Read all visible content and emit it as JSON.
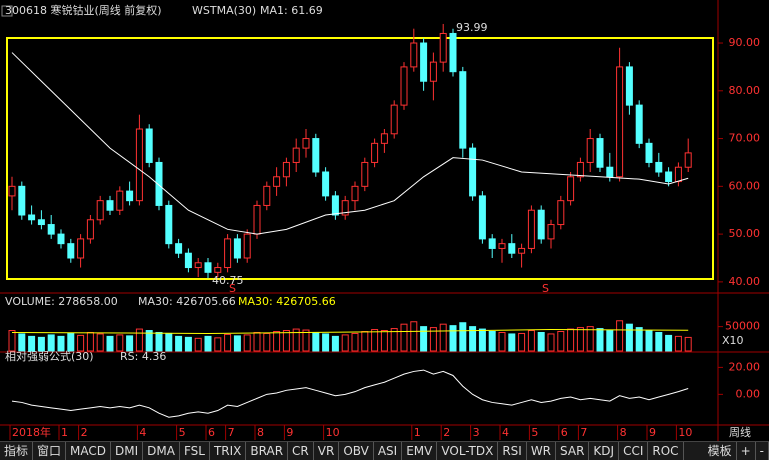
{
  "header": {
    "stock": "300618 寒锐钴业(周线 前复权)",
    "indicator": "WSTMA(30)",
    "ma1": "MA1: 61.69",
    "high_label": "93.99",
    "low_label": "40.75",
    "signals": [
      "S",
      "S"
    ],
    "period": "周线"
  },
  "tabs": [
    "指标",
    "窗口",
    "MACD",
    "DMI",
    "DMA",
    "FSL",
    "TRIX",
    "BRAR",
    "CR",
    "VR",
    "OBV",
    "ASI",
    "EMV",
    "VOL-TDX",
    "RSI",
    "WR",
    "SAR",
    "KDJ",
    "CCI",
    "ROC"
  ],
  "template": "模板",
  "plus": "+",
  "minus": "-",
  "chart_data": [
    {
      "type": "candlestick",
      "up_color": "#ff3232",
      "down_color": "#54ffff",
      "ylim": [
        38.3,
        94.4
      ],
      "yticks": [
        {
          "value": 90,
          "label": "90.00"
        },
        {
          "value": 80,
          "label": "80.00"
        },
        {
          "value": 70,
          "label": "70.00"
        },
        {
          "value": 60,
          "label": "60.00"
        },
        {
          "value": 50,
          "label": "50.00"
        },
        {
          "value": 40,
          "label": "40.00"
        }
      ],
      "candles": [
        [
          58,
          62,
          55,
          60
        ],
        [
          60,
          61,
          53,
          54
        ],
        [
          54,
          56,
          52,
          53
        ],
        [
          53,
          55,
          51,
          52
        ],
        [
          52,
          54,
          49,
          50
        ],
        [
          50,
          51,
          47,
          48
        ],
        [
          48,
          49,
          44,
          45
        ],
        [
          45,
          50,
          43,
          49
        ],
        [
          49,
          54,
          48,
          53
        ],
        [
          53,
          58,
          52,
          57
        ],
        [
          57,
          58,
          54,
          55
        ],
        [
          55,
          60,
          54,
          59
        ],
        [
          59,
          61,
          56,
          57
        ],
        [
          57,
          75,
          56,
          72
        ],
        [
          72,
          73,
          64,
          65
        ],
        [
          65,
          66,
          55,
          56
        ],
        [
          56,
          57,
          47,
          48
        ],
        [
          48,
          49,
          45,
          46
        ],
        [
          46,
          47,
          42,
          43
        ],
        [
          43,
          45,
          41,
          44
        ],
        [
          44,
          45,
          40.75,
          42
        ],
        [
          42,
          44,
          41,
          43
        ],
        [
          43,
          50,
          42,
          49
        ],
        [
          49,
          50,
          44,
          45
        ],
        [
          45,
          51,
          44,
          50
        ],
        [
          50,
          57,
          49,
          56
        ],
        [
          56,
          61,
          55,
          60
        ],
        [
          60,
          64,
          58,
          62
        ],
        [
          62,
          66,
          60,
          65
        ],
        [
          65,
          70,
          63,
          68
        ],
        [
          68,
          72,
          66,
          70
        ],
        [
          70,
          71,
          62,
          63
        ],
        [
          63,
          64,
          57,
          58
        ],
        [
          58,
          59,
          53,
          54
        ],
        [
          54,
          58,
          53,
          57
        ],
        [
          57,
          61,
          55,
          60
        ],
        [
          60,
          66,
          59,
          65
        ],
        [
          65,
          70,
          64,
          69
        ],
        [
          69,
          72,
          67,
          71
        ],
        [
          71,
          78,
          70,
          77
        ],
        [
          77,
          86,
          76,
          85
        ],
        [
          85,
          93,
          84,
          90
        ],
        [
          90,
          91,
          80,
          82
        ],
        [
          82,
          88,
          78,
          86
        ],
        [
          86,
          93.99,
          84,
          92
        ],
        [
          92,
          93,
          83,
          84
        ],
        [
          84,
          85,
          66,
          68
        ],
        [
          68,
          69,
          57,
          58
        ],
        [
          58,
          59,
          48,
          49
        ],
        [
          49,
          50,
          45,
          47
        ],
        [
          47,
          49,
          44,
          48
        ],
        [
          48,
          50,
          45,
          46
        ],
        [
          46,
          48,
          43,
          47
        ],
        [
          47,
          56,
          46,
          55
        ],
        [
          55,
          56,
          48,
          49
        ],
        [
          49,
          53,
          47,
          52
        ],
        [
          52,
          58,
          51,
          57
        ],
        [
          57,
          63,
          56,
          62
        ],
        [
          62,
          66,
          61,
          65
        ],
        [
          65,
          72,
          63,
          70
        ],
        [
          70,
          71,
          63,
          64
        ],
        [
          64,
          67,
          61,
          62
        ],
        [
          62,
          89,
          61,
          85
        ],
        [
          85,
          86,
          75,
          77
        ],
        [
          77,
          78,
          68,
          69
        ],
        [
          69,
          70,
          64,
          65
        ],
        [
          65,
          67,
          62,
          63
        ],
        [
          63,
          64,
          60,
          61
        ],
        [
          61,
          65,
          60,
          64
        ],
        [
          64,
          70,
          63,
          67
        ]
      ],
      "series": [
        {
          "name": "WSTMA(30)",
          "color": "#ffffff",
          "x": [
            0,
            3,
            6,
            10,
            14,
            18,
            22,
            25,
            28,
            32,
            36,
            39,
            42,
            45,
            48,
            52,
            56,
            60,
            64,
            67,
            69
          ],
          "values": [
            88,
            82,
            76,
            68,
            62,
            55,
            51,
            50,
            51,
            54,
            55,
            57,
            62,
            66,
            65.5,
            63,
            62.5,
            62,
            61.5,
            60.5,
            61.69
          ]
        }
      ]
    },
    {
      "type": "bar",
      "header": "VOLUME: 278658.00",
      "ma_label": "MA30: 426705.66",
      "ma_label2": "MA30: 426705.66",
      "unit": "X10",
      "ylim": [
        0,
        80000
      ],
      "yticks": [
        50000
      ],
      "values": [
        42000,
        35000,
        30000,
        28000,
        33000,
        30000,
        36000,
        32000,
        38000,
        35000,
        30000,
        33000,
        31000,
        45000,
        42000,
        38000,
        36000,
        30000,
        28000,
        26000,
        30000,
        27000,
        34000,
        31000,
        33000,
        38000,
        36000,
        40000,
        42000,
        45000,
        43000,
        38000,
        35000,
        30000,
        33000,
        36000,
        40000,
        44000,
        42000,
        46000,
        55000,
        60000,
        50000,
        48000,
        55000,
        52000,
        58000,
        50000,
        45000,
        40000,
        38000,
        35000,
        36000,
        42000,
        38000,
        35000,
        40000,
        45000,
        48000,
        50000,
        46000,
        42000,
        62000,
        55000,
        48000,
        42000,
        38000,
        32000,
        30000,
        27866
      ],
      "series": [
        {
          "name": "MA30",
          "color": "#ffff00",
          "x": [
            0,
            20,
            40,
            55,
            69
          ],
          "values": [
            38000,
            36000,
            40000,
            44000,
            42670.57
          ]
        }
      ]
    },
    {
      "type": "line",
      "header": "相对强弱公式(30)",
      "rs_label": "RS: 4.36",
      "color": "#ffffff",
      "ylim": [
        -22,
        24
      ],
      "yticks": [
        {
          "value": 20,
          "label": "20.00"
        },
        {
          "value": 0,
          "label": "0.00"
        }
      ],
      "values": [
        -5,
        -6,
        -8,
        -9,
        -10,
        -11,
        -12,
        -11,
        -10,
        -9,
        -10,
        -9,
        -10,
        -8,
        -10,
        -14,
        -17,
        -16,
        -14,
        -13,
        -14,
        -12,
        -8,
        -9,
        -6,
        -3,
        0,
        1,
        3,
        4,
        5,
        3,
        1,
        -1,
        0,
        2,
        5,
        7,
        9,
        12,
        15,
        17,
        18,
        15,
        17,
        14,
        6,
        0,
        -4,
        -6,
        -7,
        -8,
        -6,
        -4,
        -6,
        -5,
        -3,
        -2,
        -4,
        -3,
        -4,
        -5,
        -1,
        -3,
        -2,
        -4,
        -2,
        0,
        2,
        4.36
      ],
      "categories": [
        "2018年",
        null,
        null,
        null,
        null,
        "1",
        null,
        "2",
        null,
        null,
        null,
        null,
        null,
        "4",
        null,
        null,
        null,
        "5",
        null,
        null,
        "6",
        null,
        "7",
        null,
        null,
        "8",
        null,
        null,
        "9",
        null,
        null,
        null,
        "10",
        null,
        null,
        null,
        null,
        null,
        null,
        null,
        null,
        "1",
        null,
        null,
        "2",
        null,
        null,
        "3",
        null,
        null,
        "4",
        null,
        null,
        "5",
        null,
        null,
        "6",
        null,
        "7",
        null,
        null,
        null,
        "8",
        null,
        null,
        "9",
        null,
        null,
        "10",
        null
      ]
    }
  ]
}
